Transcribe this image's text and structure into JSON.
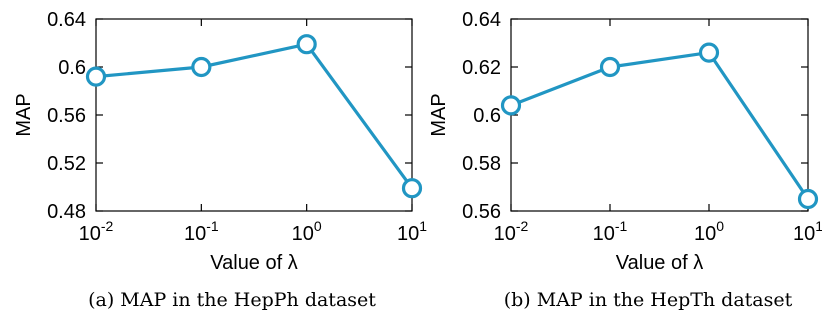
{
  "chart_data": [
    {
      "type": "line",
      "caption": "(a) MAP in the HepPh dataset",
      "xlabel": "Value of λ",
      "ylabel": "MAP",
      "xscale": "log",
      "x": [
        0.01,
        0.1,
        1,
        10
      ],
      "x_tick_labels": [
        {
          "base": "10",
          "exp": "-2"
        },
        {
          "base": "10",
          "exp": "-1"
        },
        {
          "base": "10",
          "exp": "0"
        },
        {
          "base": "10",
          "exp": "1"
        }
      ],
      "series": [
        {
          "values": [
            0.592,
            0.6,
            0.619,
            0.499
          ],
          "color": "#2196c3",
          "marker": "circle-open"
        }
      ],
      "ylim": [
        0.48,
        0.64
      ],
      "y_ticks": [
        0.48,
        0.52,
        0.56,
        0.6,
        0.64
      ],
      "y_tick_labels": [
        "0.48",
        "0.52",
        "0.56",
        "0.6",
        "0.64"
      ],
      "grid": false
    },
    {
      "type": "line",
      "caption": "(b) MAP in the HepTh dataset",
      "xlabel": "Value of λ",
      "ylabel": "MAP",
      "xscale": "log",
      "x": [
        0.01,
        0.1,
        1,
        10
      ],
      "x_tick_labels": [
        {
          "base": "10",
          "exp": "-2"
        },
        {
          "base": "10",
          "exp": "-1"
        },
        {
          "base": "10",
          "exp": "0"
        },
        {
          "base": "10",
          "exp": "1"
        }
      ],
      "series": [
        {
          "values": [
            0.604,
            0.62,
            0.626,
            0.565
          ],
          "color": "#2196c3",
          "marker": "circle-open"
        }
      ],
      "ylim": [
        0.56,
        0.64
      ],
      "y_ticks": [
        0.56,
        0.58,
        0.6,
        0.62,
        0.64
      ],
      "y_tick_labels": [
        "0.56",
        "0.58",
        "0.6",
        "0.62",
        "0.64"
      ],
      "grid": false
    }
  ]
}
